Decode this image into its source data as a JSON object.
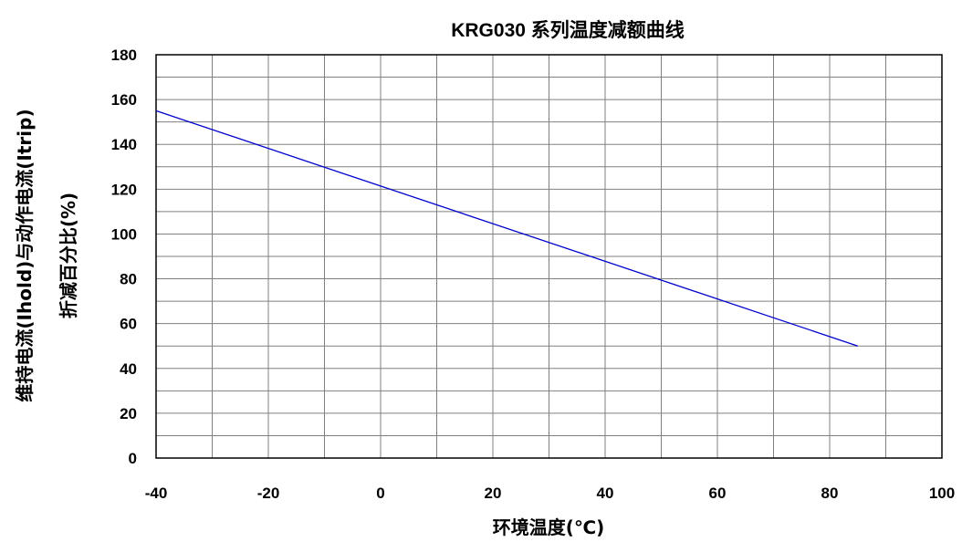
{
  "chart_data": {
    "type": "line",
    "title": "KRG030 系列温度减额曲线",
    "xlabel": "环境温度(℃)",
    "ylabel_lines": [
      "维持电流(Ihold)与动作电流(Itrip)",
      "折减百分比(%)"
    ],
    "xlim": [
      -40,
      100
    ],
    "ylim": [
      0,
      180
    ],
    "x_major_ticks": [
      -40,
      -20,
      0,
      20,
      40,
      60,
      80,
      100
    ],
    "x_tick_labels": [
      "-40",
      "-20",
      "0",
      "20",
      "40",
      "60",
      "80",
      "100"
    ],
    "x_minor_step": 10,
    "y_major_ticks": [
      0,
      20,
      40,
      60,
      80,
      100,
      120,
      140,
      160,
      180
    ],
    "y_tick_labels": [
      "0",
      "20",
      "40",
      "60",
      "80",
      "100",
      "120",
      "140",
      "160",
      "180"
    ],
    "y_minor_step": 10,
    "grid": true,
    "series": [
      {
        "color": "#0000cc",
        "x": [
          -40,
          85
        ],
        "y": [
          155,
          50
        ]
      }
    ]
  }
}
